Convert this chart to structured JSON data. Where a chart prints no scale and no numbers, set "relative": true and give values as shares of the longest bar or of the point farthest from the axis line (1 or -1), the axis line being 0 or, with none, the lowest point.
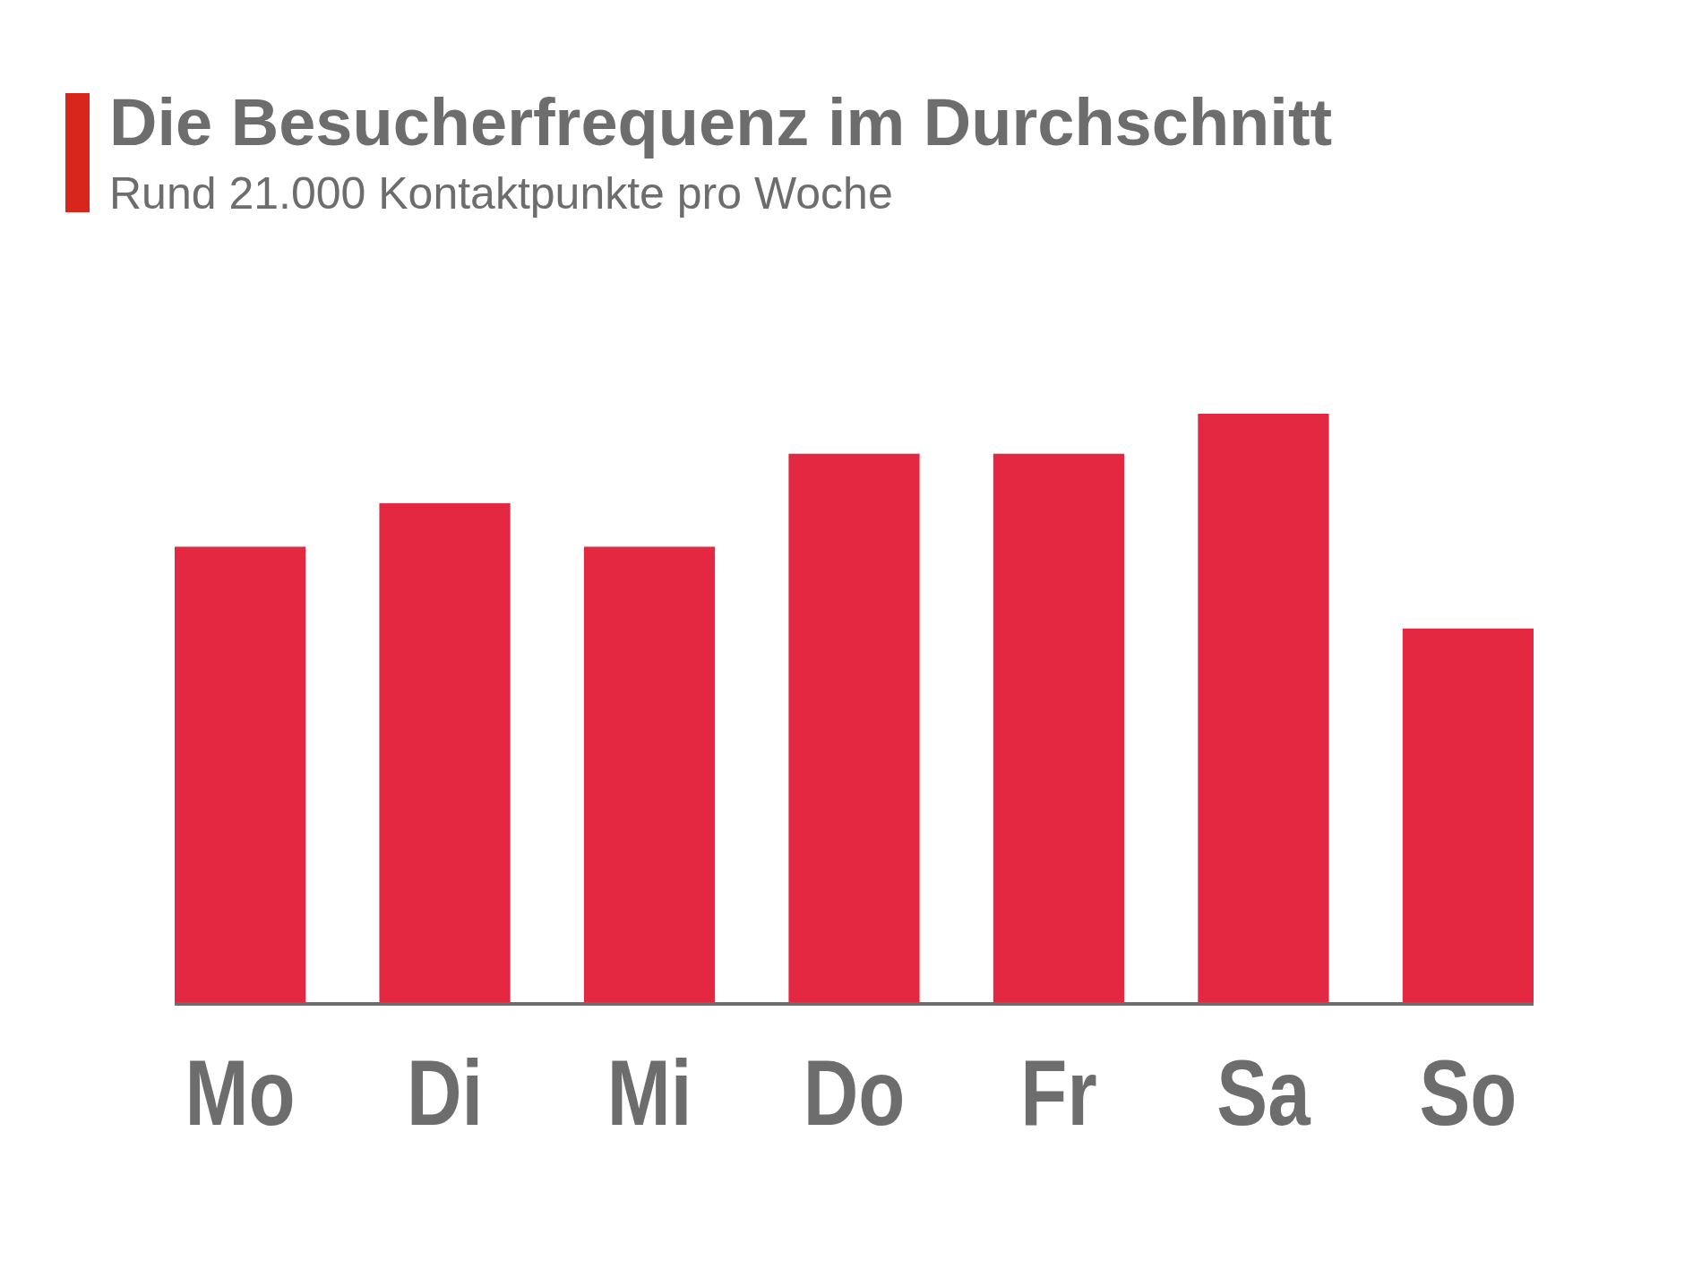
{
  "chart_data": {
    "type": "bar",
    "title": "Die Besucherfrequenz im Durchschnitt",
    "subtitle": "Rund 21.000 Kontaktpunkte pro Woche",
    "categories": [
      "Mo",
      "Di",
      "Mi",
      "Do",
      "Fr",
      "Sa",
      "So"
    ],
    "values": [
      0.774,
      0.848,
      0.774,
      0.932,
      0.932,
      1,
      0.635
    ],
    "color": "#e52842",
    "relative": true
  }
}
